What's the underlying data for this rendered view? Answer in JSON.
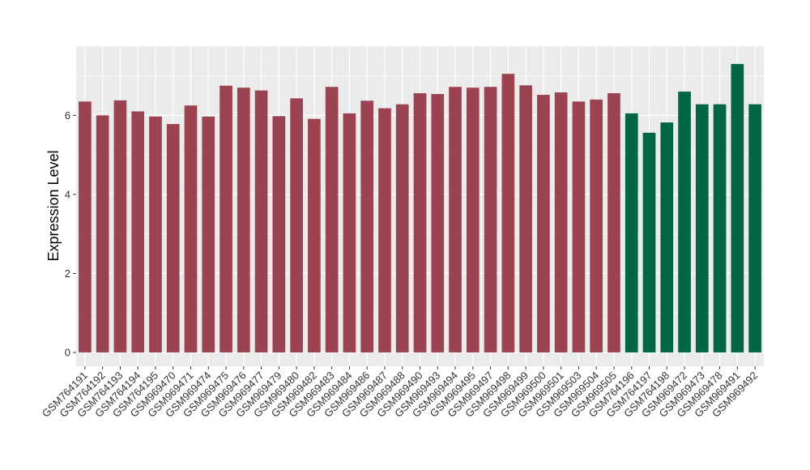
{
  "chart_data": {
    "type": "bar",
    "title": "",
    "xlabel": "",
    "ylabel": "Expression Level",
    "ylim": [
      -0.35,
      7.75
    ],
    "yticks": [
      0,
      2,
      4,
      6
    ],
    "grid": true,
    "legend": "none",
    "categories": [
      "GSM764191",
      "GSM764192",
      "GSM764193",
      "GSM764194",
      "GSM764195",
      "GSM969470",
      "GSM969471",
      "GSM969474",
      "GSM969475",
      "GSM969476",
      "GSM969477",
      "GSM969479",
      "GSM969480",
      "GSM969482",
      "GSM969483",
      "GSM969484",
      "GSM969486",
      "GSM969487",
      "GSM969488",
      "GSM969490",
      "GSM969493",
      "GSM969494",
      "GSM969495",
      "GSM969497",
      "GSM969498",
      "GSM969499",
      "GSM969500",
      "GSM969501",
      "GSM969503",
      "GSM969504",
      "GSM969505",
      "GSM764196",
      "GSM764197",
      "GSM764198",
      "GSM969472",
      "GSM969473",
      "GSM969478",
      "GSM969491",
      "GSM969492"
    ],
    "values": [
      6.35,
      6.0,
      6.38,
      6.1,
      5.97,
      5.78,
      6.25,
      5.97,
      6.75,
      6.7,
      6.63,
      5.98,
      6.43,
      5.91,
      6.72,
      6.05,
      6.37,
      6.18,
      6.28,
      6.56,
      6.54,
      6.72,
      6.7,
      6.72,
      7.05,
      6.76,
      6.52,
      6.58,
      6.35,
      6.4,
      6.56,
      6.05,
      5.56,
      5.82,
      6.6,
      6.28,
      6.28,
      7.3,
      6.28
    ],
    "groups": [
      "a",
      "a",
      "a",
      "a",
      "a",
      "a",
      "a",
      "a",
      "a",
      "a",
      "a",
      "a",
      "a",
      "a",
      "a",
      "a",
      "a",
      "a",
      "a",
      "a",
      "a",
      "a",
      "a",
      "a",
      "a",
      "a",
      "a",
      "a",
      "a",
      "a",
      "a",
      "b",
      "b",
      "b",
      "b",
      "b",
      "b",
      "b",
      "b"
    ],
    "colors": {
      "a": "#9b4350",
      "b": "#006644"
    },
    "panel_background": "#ebebeb",
    "grid_color": "#ffffff"
  }
}
